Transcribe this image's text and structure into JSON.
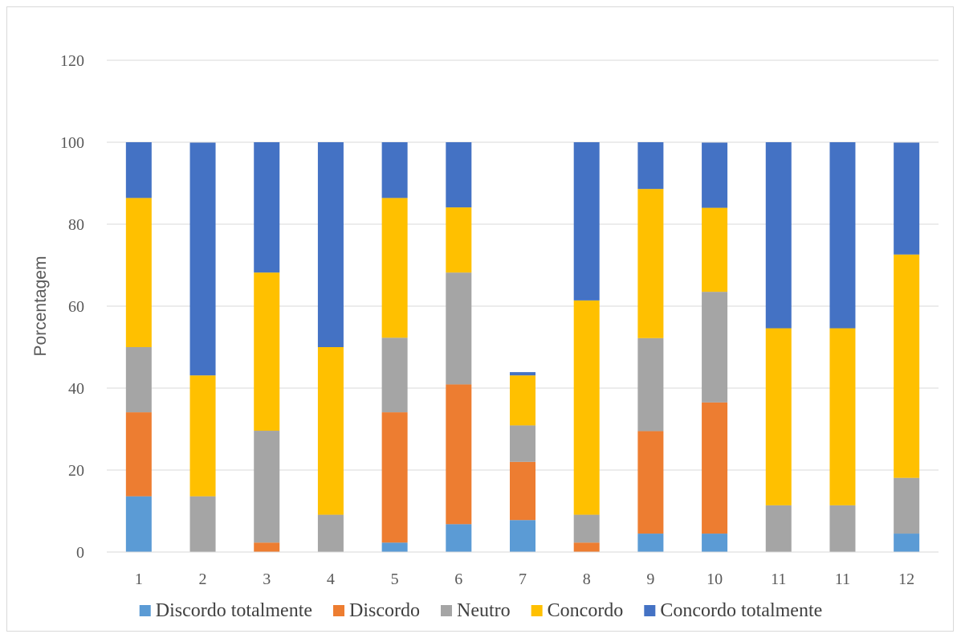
{
  "chart_data": {
    "type": "bar",
    "stacked": true,
    "categories": [
      "1",
      "2",
      "3",
      "4",
      "5",
      "6",
      "7",
      "8",
      "9",
      "10",
      "11",
      "11",
      "12"
    ],
    "series": [
      {
        "name": "Discordo totalmente",
        "color": "#5b9bd5",
        "values": [
          13.6,
          0,
          0,
          0,
          2.3,
          6.8,
          7.8,
          0,
          4.5,
          4.5,
          0,
          0,
          4.5
        ]
      },
      {
        "name": "Discordo",
        "color": "#ed7d31",
        "values": [
          20.5,
          0,
          2.3,
          0,
          31.8,
          34.1,
          14.2,
          2.3,
          25.0,
          32.0,
          0,
          0,
          0
        ]
      },
      {
        "name": "Neutro",
        "color": "#a5a5a5",
        "values": [
          15.9,
          13.6,
          27.3,
          9.1,
          18.2,
          27.3,
          8.9,
          6.8,
          22.7,
          27.0,
          11.4,
          11.4,
          13.6
        ]
      },
      {
        "name": "Concordo",
        "color": "#ffc000",
        "values": [
          36.4,
          29.5,
          38.6,
          40.9,
          34.1,
          15.9,
          12.2,
          52.3,
          36.4,
          20.5,
          43.2,
          43.2,
          54.5
        ]
      },
      {
        "name": "Concordo totalmente",
        "color": "#4472c4",
        "values": [
          13.6,
          56.8,
          31.8,
          50.0,
          13.6,
          15.9,
          0.8,
          38.6,
          11.4,
          15.9,
          45.4,
          45.4,
          27.3
        ]
      }
    ],
    "title": "",
    "xlabel": "",
    "ylabel": "Porcentagem",
    "ylim": [
      0,
      120
    ],
    "yticks": [
      0,
      20,
      40,
      60,
      80,
      100,
      120
    ],
    "grid": true,
    "legend_position": "bottom"
  }
}
